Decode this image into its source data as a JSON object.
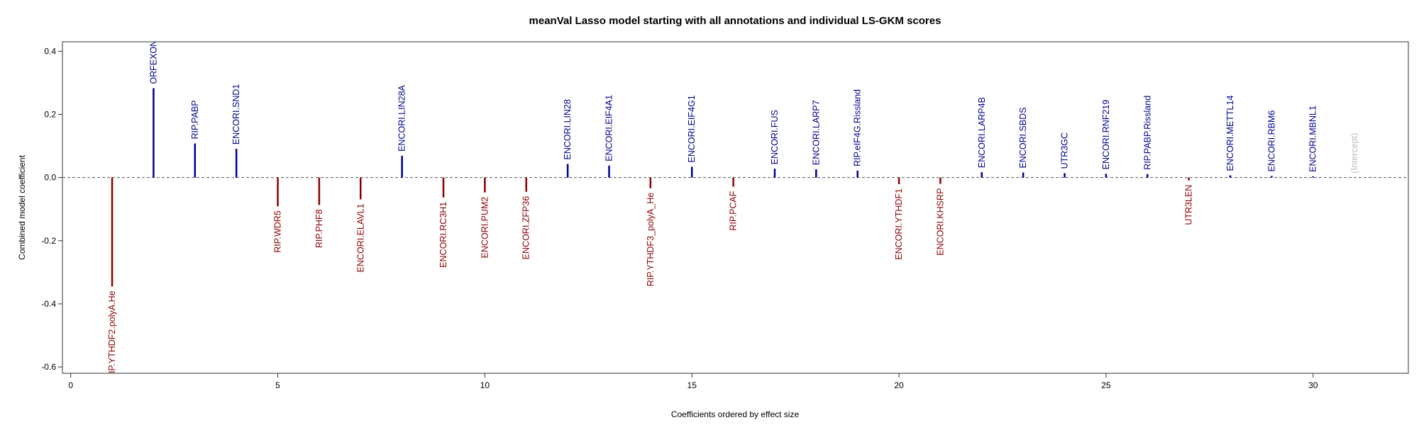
{
  "chart_data": {
    "type": "bar",
    "title": "meanVal Lasso model starting with all annotations and individual LS-GKM scores",
    "xlabel": "Coefficients ordered by effect size",
    "ylabel": "Combined model coefficient",
    "xlim": [
      -0.2,
      32.3
    ],
    "ylim": [
      -0.62,
      0.43
    ],
    "xticks": [
      0,
      5,
      10,
      15,
      20,
      25,
      30
    ],
    "yticks": [
      -0.6,
      -0.4,
      -0.2,
      0.0,
      0.2,
      0.4
    ],
    "ytick_labels": [
      "-0.6",
      "-0.4",
      "-0.2",
      "0.0",
      "0.2",
      "0.4"
    ],
    "reference_line": 0,
    "grid": false,
    "colors": {
      "positive": "#00008b",
      "negative": "#8b0000",
      "intercept": "#bebebe",
      "zero_line": "#555555"
    },
    "bars": [
      {
        "x": 1,
        "label": "RIP.YTHDF2.polyA.He",
        "value": -0.345
      },
      {
        "x": 2,
        "label": "ORFEXON",
        "value": 0.283
      },
      {
        "x": 3,
        "label": "RIP.PABP",
        "value": 0.108
      },
      {
        "x": 4,
        "label": "ENCORI.SND1",
        "value": 0.091
      },
      {
        "x": 5,
        "label": "RIP.WDR5",
        "value": -0.091
      },
      {
        "x": 6,
        "label": "RIP.PHF8",
        "value": -0.087
      },
      {
        "x": 7,
        "label": "ENCORI.ELAVL1",
        "value": -0.069
      },
      {
        "x": 8,
        "label": "ENCORI.LIN28A",
        "value": 0.069
      },
      {
        "x": 9,
        "label": "ENCORI.RC3H1",
        "value": -0.063
      },
      {
        "x": 10,
        "label": "ENCORI.PUM2",
        "value": -0.047
      },
      {
        "x": 11,
        "label": "ENCORI.ZFP36",
        "value": -0.045
      },
      {
        "x": 12,
        "label": "ENCORI.LIN28",
        "value": 0.043
      },
      {
        "x": 13,
        "label": "ENCORI.EIF4A1",
        "value": 0.038
      },
      {
        "x": 14,
        "label": "RIP.YTHDF3_polyA_He",
        "value": -0.034
      },
      {
        "x": 15,
        "label": "ENCORI.EIF4G1",
        "value": 0.034
      },
      {
        "x": 16,
        "label": "RIP.PCAF",
        "value": -0.029
      },
      {
        "x": 17,
        "label": "ENCORI.FUS",
        "value": 0.028
      },
      {
        "x": 18,
        "label": "ENCORI.LARP7",
        "value": 0.026
      },
      {
        "x": 19,
        "label": "RIP.eIF4G.Rissland",
        "value": 0.022
      },
      {
        "x": 20,
        "label": "ENCORI.YTHDF1",
        "value": -0.021
      },
      {
        "x": 21,
        "label": "ENCORI.KHSRP",
        "value": -0.02
      },
      {
        "x": 22,
        "label": "ENCORI.LARP4B",
        "value": 0.017
      },
      {
        "x": 23,
        "label": "ENCORI.SBDS",
        "value": 0.016
      },
      {
        "x": 24,
        "label": "UTR3GC",
        "value": 0.014
      },
      {
        "x": 25,
        "label": "ENCORI.RNF219",
        "value": 0.012
      },
      {
        "x": 26,
        "label": "RIP.PABP.Rissland",
        "value": 0.011
      },
      {
        "x": 27,
        "label": "UTR3LEN",
        "value": -0.009
      },
      {
        "x": 28,
        "label": "ENCORI.METTL14",
        "value": 0.007
      },
      {
        "x": 29,
        "label": "ENCORI.RBM6",
        "value": 0.005
      },
      {
        "x": 30,
        "label": "ENCORI.MBNL1",
        "value": 0.004
      },
      {
        "x": 31,
        "label": "(Intercept)",
        "value": 0.0,
        "is_intercept": true
      }
    ]
  }
}
